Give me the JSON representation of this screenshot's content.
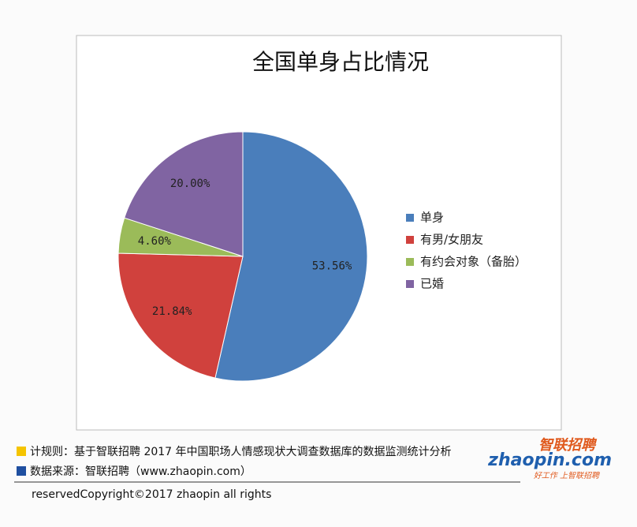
{
  "chart_data": {
    "type": "pie",
    "title": "全国单身占比情况",
    "categories": [
      "单身",
      "有男/女朋友",
      "有约会对象（备胎）",
      "已婚"
    ],
    "values": [
      53.56,
      21.84,
      4.6,
      20.0
    ],
    "value_labels": [
      "53.56%",
      "21.84%",
      "4.60%",
      "20.00%"
    ],
    "colors": [
      "#4a7ebb",
      "#d0413d",
      "#9bbb59",
      "#8064a2"
    ],
    "legend": "right"
  },
  "footer": {
    "notes": [
      "计规则：基于智联招聘 2017 年中国职场人情感现状大调查数据库的数据监测统计分析",
      "数据来源：智联招聘（www.zhaopin.com）"
    ],
    "copyright": "reservedCopyright©2017 zhaopin all rights",
    "logo": {
      "name": "智联招聘",
      "site": "zhaopin.com",
      "slogan": "好工作 上智联招聘"
    }
  }
}
